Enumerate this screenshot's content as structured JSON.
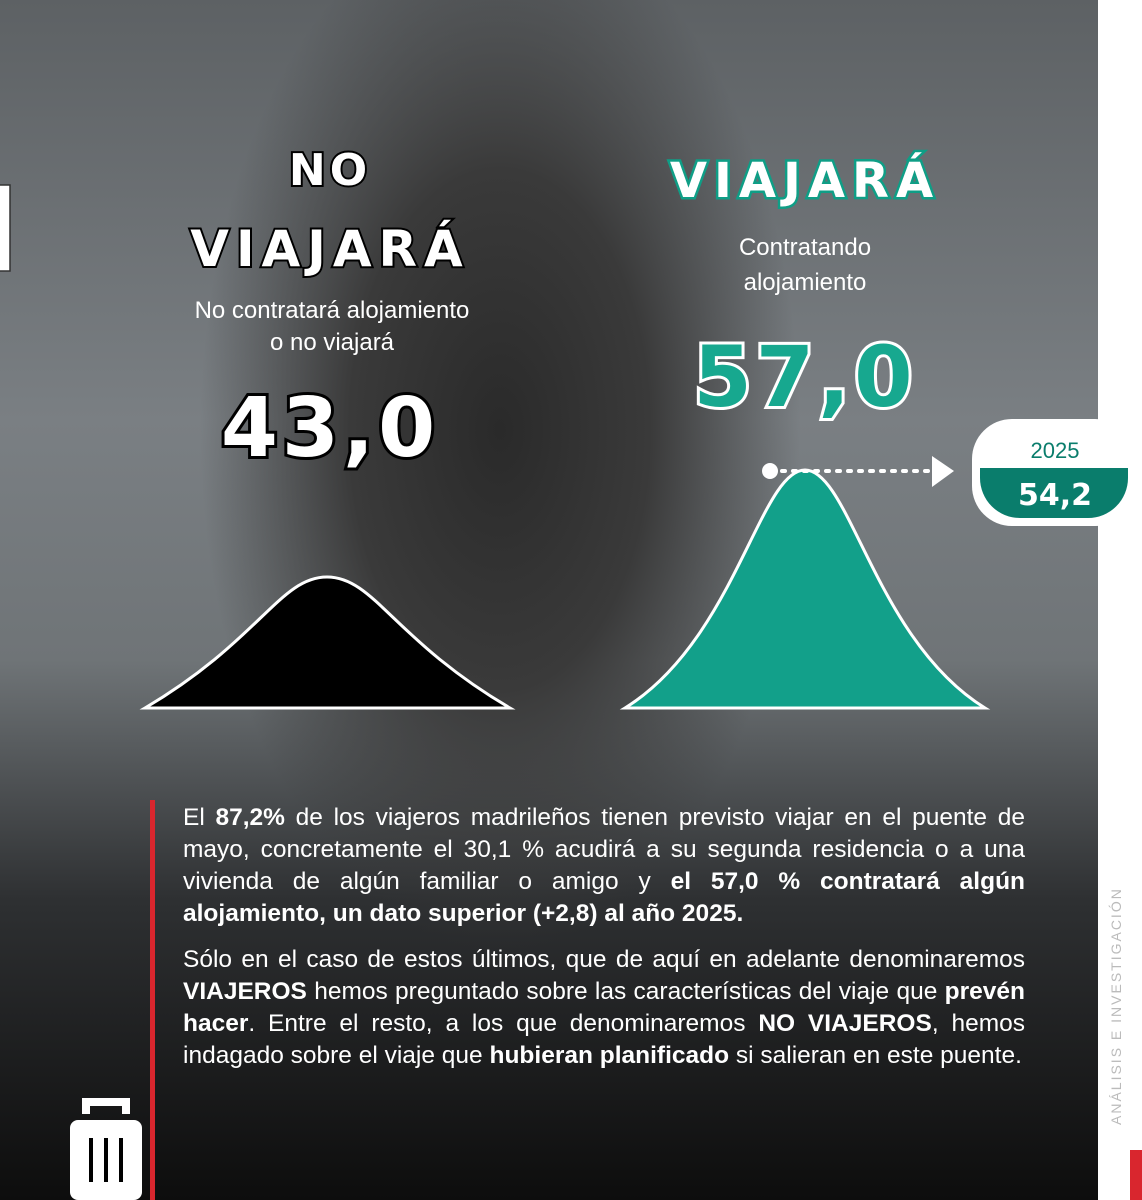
{
  "left": {
    "title_lines": [
      "NO",
      "VIAJARÁ"
    ],
    "subtitle_lines": [
      "No contratará alojamiento",
      "o no viajará"
    ],
    "value": "43,0"
  },
  "right": {
    "title": "VIAJARÁ",
    "subtitle_lines": [
      "Contratando",
      "alojamiento"
    ],
    "value": "57,0"
  },
  "badge": {
    "year": "2025",
    "value": "54,2"
  },
  "paragraphs": [
    {
      "runs": [
        {
          "text": "El ",
          "bold": false
        },
        {
          "text": "87,2%",
          "bold": true
        },
        {
          "text": " de los viajeros madrileños tienen previsto viajar en el puente de mayo, concretamente el 30,1 % acudirá a su segunda residencia o a una vivienda de algún familiar o amigo y ",
          "bold": false
        },
        {
          "text": "el 57,0 % contratará algún alojamiento, un dato superior (+2,8) al año 2025.",
          "bold": true
        }
      ]
    },
    {
      "runs": [
        {
          "text": "Sólo en el caso de estos últimos, que de aquí en adelante denominaremos ",
          "bold": false
        },
        {
          "text": "VIAJEROS",
          "bold": true
        },
        {
          "text": " hemos preguntado sobre las características del viaje que ",
          "bold": false
        },
        {
          "text": "prevén hacer",
          "bold": true
        },
        {
          "text": ". Entre el resto, a los que denominaremos ",
          "bold": false
        },
        {
          "text": "NO VIAJEROS",
          "bold": true
        },
        {
          "text": ", hemos indagado sobre el viaje que ",
          "bold": false
        },
        {
          "text": "hubieran planificado",
          "bold": true
        },
        {
          "text": " si salieran en este puente.",
          "bold": false
        }
      ]
    }
  ],
  "side_label": "ANÁLISIS E INVESTIGACIÓN"
}
